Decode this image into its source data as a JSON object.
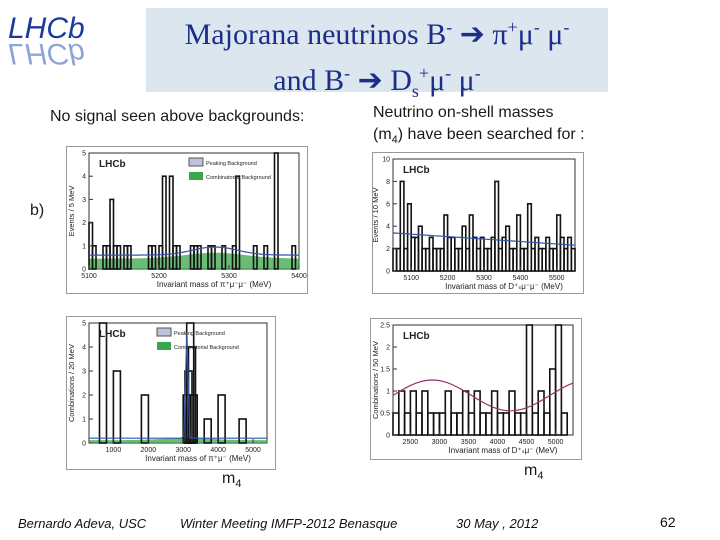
{
  "slide": {
    "title_line1_pre": "Majorana neutrinos B",
    "title_line1_minus": "-",
    "title_line1_arrow": "➔",
    "title_line1_post": " π",
    "title_line1_plus": "+",
    "title_line1_mu": "μ",
    "title_line1_m2": "-",
    "title_line1_mu2": " μ",
    "title_line1_m3": "-",
    "title_line2_pre": "and B",
    "title_line2_minus": "-",
    "title_line2_arrow": "➔",
    "title_line2_ds": " D",
    "title_line2_s": "s",
    "title_line2_plus": "+",
    "title_line2_mu": "μ",
    "title_line2_m2": "-",
    "title_line2_mu2": " μ",
    "title_line2_m3": "-",
    "left_caption": "No signal seen above backgrounds:",
    "right_caption_line1": "Neutrino on-shell masses",
    "right_caption_line2_pre": "(m",
    "right_caption_line2_sub": "4",
    "right_caption_line2_post": ") have  been searched for :",
    "label_b": "b)",
    "m4_left": "m",
    "m4_left_sub": "4",
    "m4_right": "m",
    "m4_right_sub": "4",
    "footer_author": "Bernardo Adeva, USC",
    "footer_event": "Winter Meeting IMFP-2012  Benasque",
    "footer_date": "30 May , 2012",
    "page_number": "62"
  },
  "logo": {
    "text": "LHCb",
    "color": "#1b3a9e"
  },
  "plots": {
    "tl": {
      "lhcb": "LHCb",
      "legend1": "Peaking Background",
      "legend2": "Combinatorial Background",
      "ylabel": "Events / 5 MeV",
      "xlabel": "Invariant mass of π⁺μ⁻μ⁻ (MeV)",
      "xticks": [
        "5100",
        "5200",
        "5300",
        "5400"
      ],
      "yticks": [
        "0",
        "1",
        "2",
        "3",
        "4",
        "5"
      ]
    },
    "tr": {
      "lhcb": "LHCb",
      "ylabel": "Events / 10 MeV",
      "xlabel": "Invariant mass of D⁺ₛμ⁻μ⁻ (MeV)",
      "xticks": [
        "5100",
        "5200",
        "5300",
        "5400",
        "5500"
      ],
      "yticks": [
        "0",
        "2",
        "4",
        "6",
        "8",
        "10"
      ]
    },
    "bl": {
      "lhcb": "LHCb",
      "legend1": "Peaking Background",
      "legend2": "Combinatorial Background",
      "ylabel": "Combinations / 20 MeV",
      "xlabel": "Invariant mass of π⁺μ⁻ (MeV)",
      "xticks": [
        "1000",
        "2000",
        "3000",
        "4000",
        "5000"
      ],
      "yticks": [
        "0",
        "1",
        "2",
        "3",
        "4",
        "5"
      ]
    },
    "br": {
      "lhcb": "LHCb",
      "ylabel": "Combinations / 50 MeV",
      "xlabel": "Invariant mass of D⁺ₛμ⁻ (MeV)",
      "xticks": [
        "2500",
        "3000",
        "3500",
        "4000",
        "4500",
        "5000"
      ],
      "yticks": [
        "0",
        "0.5",
        "1",
        "1.5",
        "2",
        "2.5"
      ]
    }
  },
  "chart_data": [
    {
      "type": "bar",
      "x": [
        5100,
        5105,
        5110,
        5115,
        5120,
        5125,
        5130,
        5135,
        5140,
        5145,
        5150,
        5155,
        5160,
        5165,
        5170,
        5175,
        5180,
        5185,
        5190,
        5195,
        5200,
        5205,
        5210,
        5215,
        5220,
        5225,
        5230,
        5235,
        5240,
        5245,
        5250,
        5255,
        5260,
        5265,
        5270,
        5275,
        5280,
        5285,
        5290,
        5295,
        5300,
        5305,
        5310,
        5315,
        5320,
        5325,
        5330,
        5335,
        5340,
        5345,
        5350,
        5355,
        5360,
        5365,
        5370,
        5375,
        5380,
        5385,
        5390,
        5395
      ],
      "values": [
        2,
        1,
        0,
        0,
        1,
        1,
        3,
        1,
        1,
        0,
        1,
        1,
        0,
        0,
        0,
        0,
        0,
        1,
        1,
        0,
        1,
        4,
        0,
        4,
        1,
        1,
        0,
        0,
        0,
        1,
        1,
        1,
        0,
        0,
        1,
        1,
        0,
        0,
        1,
        0,
        0,
        1,
        4,
        0,
        0,
        0,
        0,
        1,
        0,
        0,
        1,
        0,
        0,
        5,
        0,
        0,
        0,
        0,
        1,
        0
      ],
      "xlabel": "Invariant mass of π⁺μ⁻μ⁻ (MeV)",
      "ylabel": "Events / 5 MeV",
      "xlim": [
        5100,
        5400
      ],
      "ylim": [
        0,
        5
      ]
    },
    {
      "type": "bar",
      "x": [
        5050,
        5060,
        5070,
        5080,
        5090,
        5100,
        5110,
        5120,
        5130,
        5140,
        5150,
        5160,
        5170,
        5180,
        5190,
        5200,
        5210,
        5220,
        5230,
        5240,
        5250,
        5260,
        5270,
        5280,
        5290,
        5300,
        5310,
        5320,
        5330,
        5340,
        5350,
        5360,
        5370,
        5380,
        5390,
        5400,
        5410,
        5420,
        5430,
        5440,
        5450,
        5460,
        5470,
        5480,
        5490,
        5500,
        5510,
        5520,
        5530,
        5540
      ],
      "values": [
        2,
        2,
        8,
        2,
        6,
        3,
        3,
        4,
        2,
        2,
        3,
        2,
        2,
        2,
        5,
        3,
        3,
        2,
        2,
        4,
        2,
        5,
        3,
        2,
        3,
        2,
        2,
        3,
        8,
        2,
        3,
        4,
        2,
        2,
        5,
        2,
        2,
        6,
        2,
        3,
        2,
        2,
        3,
        2,
        2,
        5,
        3,
        2,
        3,
        2
      ],
      "xlabel": "Invariant mass of D⁺ₛμ⁻μ⁻ (MeV)",
      "ylabel": "Events / 10 MeV",
      "xlim": [
        5050,
        5550
      ],
      "ylim": [
        0,
        10
      ]
    },
    {
      "type": "bar",
      "x": [
        400,
        600,
        800,
        1000,
        1200,
        1400,
        1600,
        1800,
        2000,
        2200,
        2400,
        2600,
        2800,
        3000,
        3050,
        3100,
        3150,
        3200,
        3400,
        3600,
        3800,
        4000,
        4200,
        4400,
        4600,
        4800,
        5000
      ],
      "values": [
        0,
        5,
        0,
        3,
        0,
        0,
        0,
        2,
        0,
        0,
        0,
        0,
        0,
        2,
        3,
        5,
        4,
        2,
        0,
        1,
        0,
        2,
        0,
        0,
        1,
        0,
        0
      ],
      "xlabel": "Invariant mass of π⁺μ⁻ (MeV)",
      "ylabel": "Combinations / 20 MeV",
      "xlim": [
        300,
        5400
      ],
      "ylim": [
        0,
        5
      ]
    },
    {
      "type": "bar",
      "x": [
        2200,
        2300,
        2400,
        2500,
        2600,
        2700,
        2800,
        2900,
        3000,
        3100,
        3200,
        3300,
        3400,
        3500,
        3600,
        3700,
        3800,
        3900,
        4000,
        4100,
        4200,
        4300,
        4400,
        4500,
        4600,
        4700,
        4800,
        4900,
        5000,
        5100
      ],
      "values": [
        0.5,
        1.0,
        0.5,
        1.0,
        0.5,
        1.0,
        0.5,
        0.5,
        0.5,
        1.0,
        0.5,
        0.5,
        1.0,
        0.5,
        1.0,
        0.5,
        0.5,
        1.0,
        0.5,
        0.5,
        1.0,
        0.5,
        0.5,
        2.5,
        0.5,
        1.0,
        0.5,
        1.5,
        2.5,
        0.5
      ],
      "xlabel": "Invariant mass of D⁺ₛμ⁻ (MeV)",
      "ylabel": "Combinations / 50 MeV",
      "xlim": [
        2200,
        5300
      ],
      "ylim": [
        0,
        2.5
      ]
    }
  ]
}
